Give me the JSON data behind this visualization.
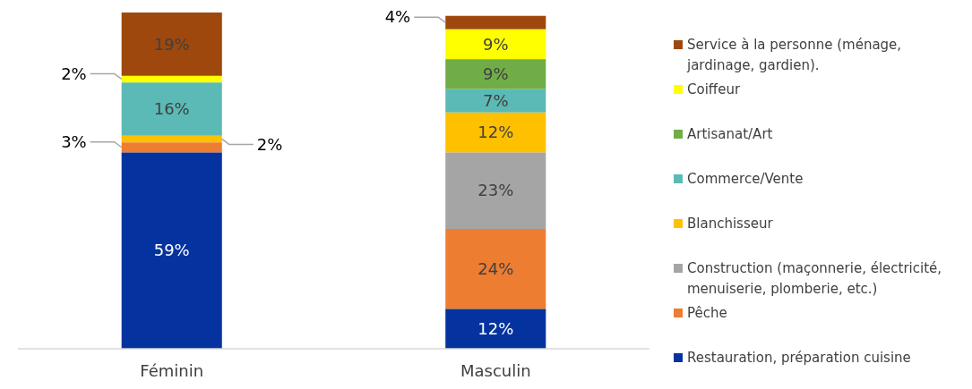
{
  "chart_data": {
    "type": "bar",
    "stacked": true,
    "data_labels": true,
    "legend": "right",
    "categories": [
      "Féminin",
      "Masculin"
    ],
    "series": [
      {
        "name": "Restauration, préparation cuisine",
        "color": "#0433a0",
        "values": [
          59,
          12
        ],
        "value_labels": [
          "59%",
          "12%"
        ]
      },
      {
        "name": "Pêche",
        "color": "#ed7d31",
        "values": [
          3,
          24
        ],
        "value_labels": [
          "3%",
          "24%"
        ]
      },
      {
        "name": "Construction (maçonnerie, électricité, menuiserie, plomberie, etc.)",
        "color": "#a5a5a5",
        "values": [
          0,
          23
        ],
        "value_labels": [
          null,
          "23%"
        ]
      },
      {
        "name": "Blanchisseur",
        "color": "#ffc000",
        "values": [
          2,
          12
        ],
        "value_labels": [
          "2%",
          "12%"
        ]
      },
      {
        "name": "Commerce/Vente",
        "color": "#5bbab5",
        "values": [
          16,
          7
        ],
        "value_labels": [
          "16%",
          "7%"
        ]
      },
      {
        "name": "Artisanat/Art",
        "color": "#70ad47",
        "values": [
          0,
          9
        ],
        "value_labels": [
          null,
          "9%"
        ]
      },
      {
        "name": "Coiffeur",
        "color": "#ffff00",
        "values": [
          2,
          9
        ],
        "value_labels": [
          "2%",
          "9%"
        ]
      },
      {
        "name": "Service à la personne (ménage, jardinage, gardien).",
        "color": "#9e480e",
        "values": [
          19,
          4
        ],
        "value_labels": [
          "19%",
          "4%"
        ]
      }
    ]
  }
}
